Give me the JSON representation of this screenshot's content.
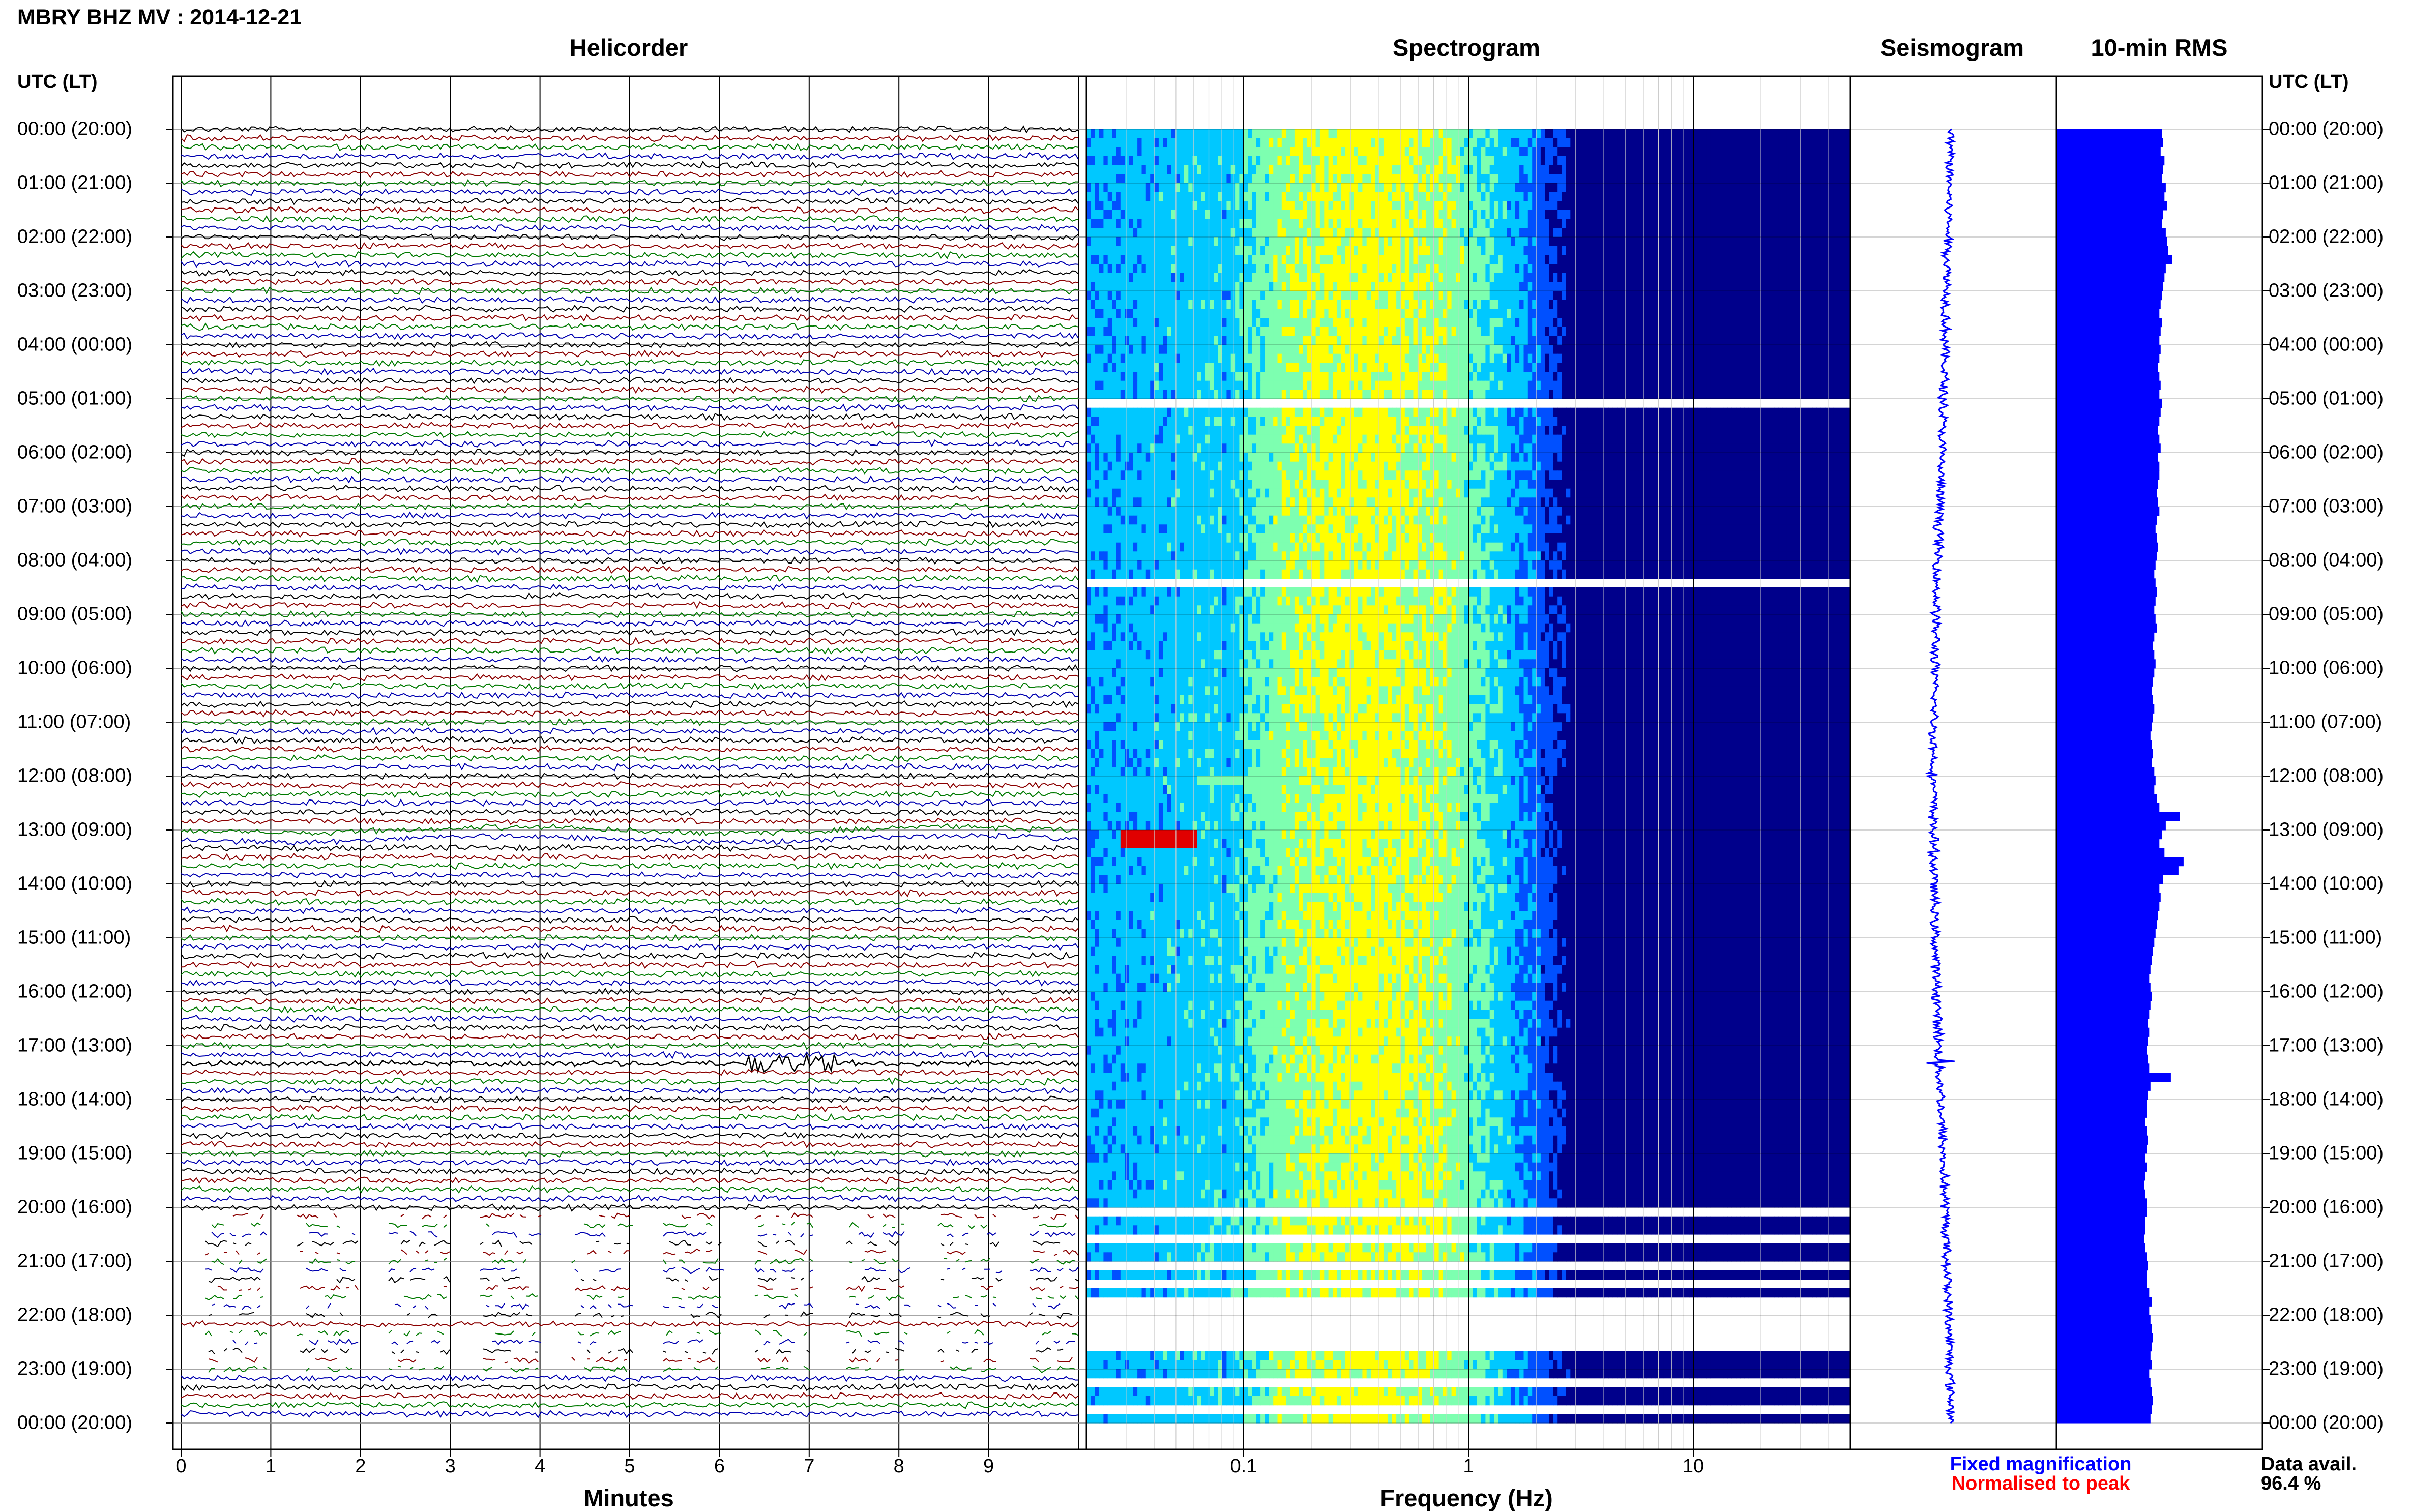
{
  "header": {
    "title": "MBRY BHZ MV : 2014-12-21"
  },
  "panels": {
    "helicorder": "Helicorder",
    "spectrogram": "Spectrogram",
    "seismogram": "Seismogram",
    "rms": "10-min RMS"
  },
  "time_axis": {
    "header": "UTC (LT)",
    "labels": [
      "00:00 (20:00)",
      "01:00 (21:00)",
      "02:00 (22:00)",
      "03:00 (23:00)",
      "04:00 (00:00)",
      "05:00 (01:00)",
      "06:00 (02:00)",
      "07:00 (03:00)",
      "08:00 (04:00)",
      "09:00 (05:00)",
      "10:00 (06:00)",
      "11:00 (07:00)",
      "12:00 (08:00)",
      "13:00 (09:00)",
      "14:00 (10:00)",
      "15:00 (11:00)",
      "16:00 (12:00)",
      "17:00 (13:00)",
      "18:00 (14:00)",
      "19:00 (15:00)",
      "20:00 (16:00)",
      "21:00 (17:00)",
      "22:00 (18:00)",
      "23:00 (19:00)",
      "00:00 (20:00)"
    ]
  },
  "helicorder_axis": {
    "xlabel": "Minutes",
    "ticks": [
      "0",
      "1",
      "2",
      "3",
      "4",
      "5",
      "6",
      "7",
      "8",
      "9"
    ],
    "trace_colors": [
      "#000000",
      "#8b0000",
      "#007a00",
      "#0000b0"
    ]
  },
  "spectrogram_axis": {
    "xlabel": "Frequency (Hz)",
    "ticks": [
      "0.1",
      "1",
      "10"
    ],
    "colormap": [
      "#00008b",
      "#0050ff",
      "#00c8ff",
      "#7dffb0",
      "#ffff00",
      "#ff8000",
      "#e00000"
    ]
  },
  "legend": {
    "fixed": "Fixed magnification",
    "fixed_color": "#0000ff",
    "normalised": "Normalised to peak",
    "normalised_color": "#ff0000"
  },
  "availability": {
    "label": "Data avail.",
    "value": "96.4 %"
  },
  "chart_data": [
    {
      "type": "line",
      "name": "helicorder",
      "x_unit": "minutes",
      "xlim": [
        0,
        10
      ],
      "rows": 144,
      "events": [
        {
          "utc": "17:20",
          "minute": 6.8,
          "note": "large burst"
        },
        {
          "utc": "13:00",
          "minute": 0.5,
          "note": "long-period swell"
        }
      ],
      "gaps": [
        "20:10-22:00 partial",
        "22:20-23:10 partial"
      ]
    },
    {
      "type": "heatmap",
      "name": "spectrogram",
      "x_scale": "log",
      "xlim_hz": [
        0.02,
        50
      ],
      "peak_band_hz": [
        0.2,
        0.5
      ],
      "high_energy_event": {
        "utc": "13:00",
        "band_hz": [
          0.03,
          0.07
        ]
      },
      "blank_rows_utc": [
        "05:00",
        "08:20",
        "20:00-20:10",
        "20:30",
        "20:50",
        "21:10",
        "21:30-22:00",
        "22:30",
        "23:00"
      ]
    },
    {
      "type": "line",
      "name": "seismogram",
      "spike_utc": "17:20"
    },
    {
      "type": "bar",
      "name": "rms_10min",
      "bins": 144,
      "values": [
        0.82,
        0.83,
        0.81,
        0.84,
        0.83,
        0.82,
        0.85,
        0.84,
        0.86,
        0.83,
        0.82,
        0.85,
        0.86,
        0.87,
        0.9,
        0.85,
        0.84,
        0.83,
        0.82,
        0.81,
        0.8,
        0.82,
        0.81,
        0.8,
        0.81,
        0.8,
        0.79,
        0.8,
        0.81,
        0.8,
        0.82,
        0.81,
        0.8,
        0.79,
        0.8,
        0.81,
        0.79,
        0.8,
        0.8,
        0.79,
        0.78,
        0.79,
        0.8,
        0.78,
        0.77,
        0.78,
        0.79,
        0.78,
        0.77,
        0.76,
        0.77,
        0.78,
        0.77,
        0.76,
        0.77,
        0.78,
        0.76,
        0.75,
        0.76,
        0.77,
        0.76,
        0.75,
        0.74,
        0.75,
        0.76,
        0.75,
        0.74,
        0.73,
        0.74,
        0.75,
        0.74,
        0.76,
        0.77,
        0.76,
        0.78,
        0.8,
        0.96,
        0.85,
        0.82,
        0.8,
        0.84,
        0.99,
        0.95,
        0.83,
        0.8,
        0.81,
        0.8,
        0.79,
        0.78,
        0.77,
        0.76,
        0.75,
        0.74,
        0.73,
        0.72,
        0.73,
        0.74,
        0.73,
        0.72,
        0.71,
        0.72,
        0.71,
        0.7,
        0.71,
        0.72,
        0.89,
        0.73,
        0.71,
        0.7,
        0.7,
        0.69,
        0.7,
        0.71,
        0.7,
        0.69,
        0.7,
        0.69,
        0.68,
        0.69,
        0.7,
        0.7,
        0.69,
        0.69,
        0.68,
        0.69,
        0.7,
        0.71,
        0.7,
        0.7,
        0.72,
        0.74,
        0.72,
        0.73,
        0.74,
        0.75,
        0.74,
        0.73,
        0.74,
        0.72,
        0.73,
        0.74,
        0.75,
        0.74,
        0.73
      ]
    }
  ]
}
